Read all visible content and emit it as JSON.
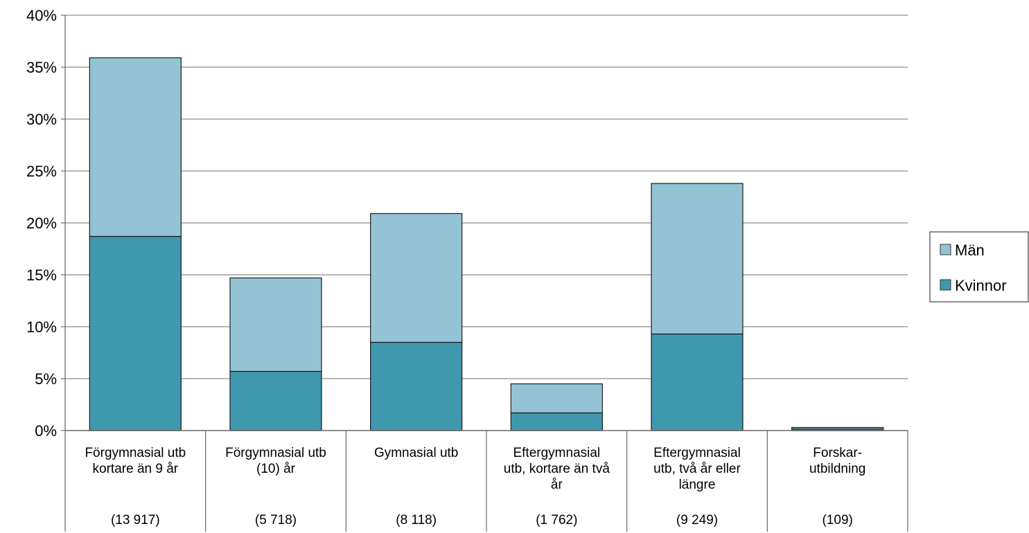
{
  "chart_data": {
    "type": "bar",
    "stacked": true,
    "categories": [
      {
        "lines": [
          "Förgymnasial utb",
          "kortare än 9 år"
        ],
        "count": "(13 917)"
      },
      {
        "lines": [
          "Förgymnasial utb",
          "(10) år"
        ],
        "count": "(5 718)"
      },
      {
        "lines": [
          "Gymnasial utb"
        ],
        "count": "(8 118)"
      },
      {
        "lines": [
          "Eftergymnasial",
          "utb, kortare än två",
          "år"
        ],
        "count": "(1 762)"
      },
      {
        "lines": [
          "Eftergymnasial",
          "utb, två år eller",
          "längre"
        ],
        "count": "(9 249)"
      },
      {
        "lines": [
          "Forskar-",
          "utbildning"
        ],
        "count": "(109)"
      }
    ],
    "series": [
      {
        "name": "Kvinnor",
        "color": "#3f98ae",
        "values": [
          18.7,
          5.7,
          8.5,
          1.7,
          9.3,
          0.15
        ]
      },
      {
        "name": "Män",
        "color": "#93c3d5",
        "values": [
          17.2,
          9.0,
          12.4,
          2.8,
          14.5,
          0.15
        ]
      }
    ],
    "yticks": [
      "0%",
      "5%",
      "10%",
      "15%",
      "20%",
      "25%",
      "30%",
      "35%",
      "40%"
    ],
    "ylim": [
      0,
      40
    ],
    "grid": true,
    "legend": {
      "placement": "right",
      "order": [
        "Män",
        "Kvinnor"
      ]
    }
  }
}
